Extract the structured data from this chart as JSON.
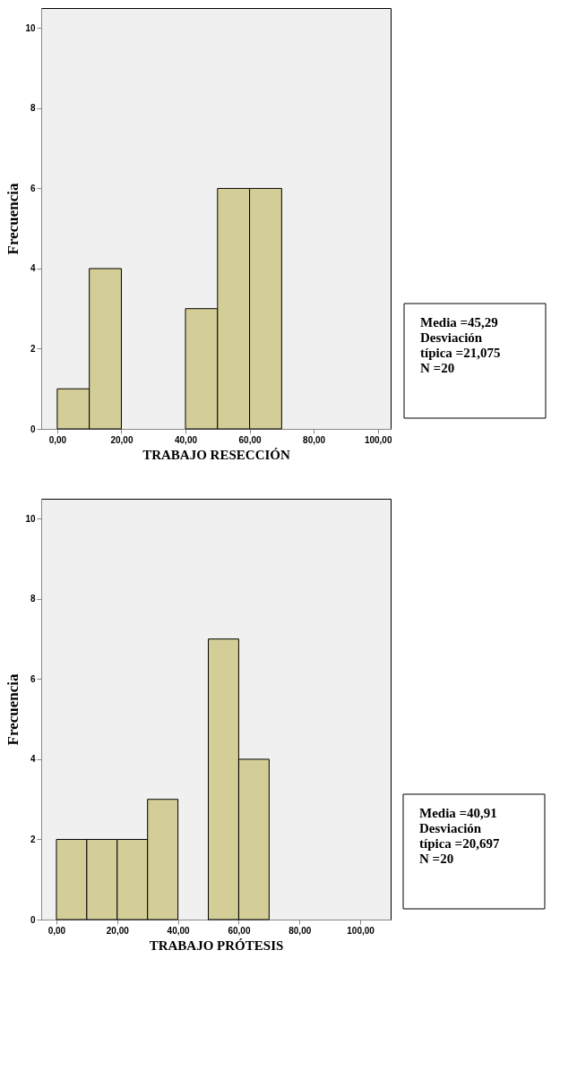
{
  "chart_data": [
    {
      "type": "histogram",
      "xlabel": "TRABAJO RESECCIÓN",
      "ylabel": "Frecuencia",
      "bins": [
        0,
        10,
        20,
        30,
        40,
        50,
        60,
        70
      ],
      "values": [
        1,
        4,
        0,
        0,
        3,
        6,
        6
      ],
      "color": "#d3ce97",
      "xlim": [
        -5,
        104
      ],
      "xticks": [
        {
          "value": 0,
          "label": "0,00"
        },
        {
          "value": 20,
          "label": "20,00"
        },
        {
          "value": 40,
          "label": "40,00"
        },
        {
          "value": 60,
          "label": "60,00"
        },
        {
          "value": 80,
          "label": "80,00"
        },
        {
          "value": 100,
          "label": "100,00"
        }
      ],
      "ylim": [
        0,
        10.5
      ],
      "yticks": [
        0,
        2,
        4,
        6,
        8,
        10
      ],
      "grid": false,
      "annotations": [
        "Media =45,29",
        "Desviación típica =21,075",
        "N =20"
      ]
    },
    {
      "type": "histogram",
      "xlabel": "TRABAJO PRÓTESIS",
      "ylabel": "Frecuencia",
      "bins": [
        0,
        10,
        20,
        30,
        40,
        50,
        60,
        70
      ],
      "values": [
        2,
        2,
        2,
        3,
        0,
        7,
        4
      ],
      "color": "#d3ce97",
      "xlim": [
        -5,
        110
      ],
      "xticks": [
        {
          "value": 0,
          "label": "0,00"
        },
        {
          "value": 20,
          "label": "20,00"
        },
        {
          "value": 40,
          "label": "40,00"
        },
        {
          "value": 60,
          "label": "60,00"
        },
        {
          "value": 80,
          "label": "80,00"
        },
        {
          "value": 100,
          "label": "100,00"
        }
      ],
      "ylim": [
        0,
        10.5
      ],
      "yticks": [
        0,
        2,
        4,
        6,
        8,
        10
      ],
      "grid": false,
      "annotations": [
        "Media =40,91",
        "Desviación típica =20,697",
        "N =20"
      ]
    }
  ]
}
